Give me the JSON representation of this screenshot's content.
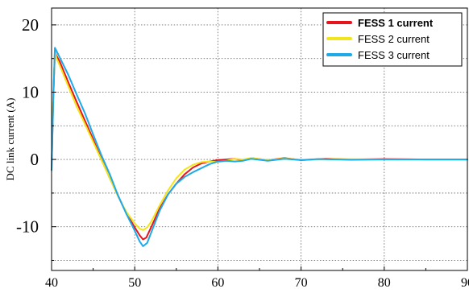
{
  "chart_data": {
    "type": "line",
    "title": "",
    "xlabel": "",
    "ylabel": "DC link current (A)",
    "xlim": [
      40,
      90
    ],
    "ylim": [
      -16.5,
      22.5
    ],
    "x_ticks": [
      40,
      50,
      60,
      70,
      80,
      90
    ],
    "x_tick_labels": [
      "40",
      "50",
      "60",
      "70",
      "80",
      "90"
    ],
    "y_ticks": [
      20,
      10,
      0,
      -10
    ],
    "y_tick_labels": [
      "20",
      "10",
      "0",
      "-10"
    ],
    "y_minor_ticks": [
      15,
      5,
      -5,
      -15
    ],
    "grid": true,
    "legend_position": "top-right",
    "series": [
      {
        "name": "FESS 1 current",
        "color": "#e8141b",
        "points": [
          [
            40.0,
            -1.5
          ],
          [
            40.2,
            9.0
          ],
          [
            40.4,
            16.0
          ],
          [
            40.6,
            15.4
          ],
          [
            41.0,
            14.5
          ],
          [
            42.0,
            11.5
          ],
          [
            43.0,
            8.6
          ],
          [
            44.0,
            5.8
          ],
          [
            45.0,
            3.0
          ],
          [
            46.0,
            0.0
          ],
          [
            47.0,
            -2.8
          ],
          [
            48.0,
            -5.4
          ],
          [
            49.0,
            -8.0
          ],
          [
            50.0,
            -10.1
          ],
          [
            50.6,
            -11.3
          ],
          [
            51.0,
            -11.9
          ],
          [
            51.4,
            -11.6
          ],
          [
            52.0,
            -10.0
          ],
          [
            53.0,
            -7.3
          ],
          [
            54.0,
            -5.2
          ],
          [
            55.0,
            -3.6
          ],
          [
            56.0,
            -2.2
          ],
          [
            57.0,
            -1.2
          ],
          [
            58.0,
            -0.6
          ],
          [
            59.0,
            -0.3
          ],
          [
            60.0,
            -0.1
          ],
          [
            61.0,
            0.0
          ],
          [
            62.0,
            0.1
          ],
          [
            63.0,
            -0.1
          ],
          [
            64.0,
            0.2
          ],
          [
            66.0,
            -0.1
          ],
          [
            68.0,
            0.2
          ],
          [
            70.0,
            -0.1
          ],
          [
            73.0,
            0.1
          ],
          [
            76.0,
            0.0
          ],
          [
            80.0,
            0.05
          ],
          [
            85.0,
            0.0
          ],
          [
            90.0,
            0.0
          ]
        ]
      },
      {
        "name": "FESS 2 current",
        "color": "#f3e51c",
        "points": [
          [
            40.0,
            -1.2
          ],
          [
            40.2,
            9.5
          ],
          [
            40.4,
            16.1
          ],
          [
            40.6,
            15.0
          ],
          [
            41.0,
            13.9
          ],
          [
            42.0,
            10.9
          ],
          [
            43.0,
            7.9
          ],
          [
            44.0,
            5.3
          ],
          [
            45.0,
            2.6
          ],
          [
            46.0,
            -0.1
          ],
          [
            47.0,
            -2.8
          ],
          [
            48.0,
            -5.5
          ],
          [
            49.0,
            -7.8
          ],
          [
            50.0,
            -9.5
          ],
          [
            50.6,
            -10.3
          ],
          [
            51.0,
            -10.5
          ],
          [
            51.5,
            -10.1
          ],
          [
            52.0,
            -9.2
          ],
          [
            53.0,
            -6.8
          ],
          [
            54.0,
            -4.6
          ],
          [
            55.0,
            -2.8
          ],
          [
            56.0,
            -1.5
          ],
          [
            57.0,
            -0.8
          ],
          [
            58.0,
            -0.4
          ],
          [
            59.0,
            -0.3
          ],
          [
            60.0,
            -0.4
          ],
          [
            61.0,
            -0.2
          ],
          [
            62.0,
            0.1
          ],
          [
            63.0,
            0.0
          ],
          [
            64.0,
            0.2
          ],
          [
            66.0,
            -0.1
          ],
          [
            68.0,
            0.15
          ],
          [
            70.0,
            -0.05
          ],
          [
            74.0,
            0.05
          ],
          [
            80.0,
            0.0
          ],
          [
            90.0,
            0.0
          ]
        ]
      },
      {
        "name": "FESS 3 current",
        "color": "#1ea9e8",
        "points": [
          [
            40.0,
            -1.6
          ],
          [
            40.2,
            8.5
          ],
          [
            40.4,
            16.6
          ],
          [
            40.6,
            16.1
          ],
          [
            41.0,
            15.1
          ],
          [
            42.0,
            12.6
          ],
          [
            43.0,
            9.7
          ],
          [
            44.0,
            6.9
          ],
          [
            45.0,
            3.7
          ],
          [
            46.0,
            0.6
          ],
          [
            47.0,
            -2.2
          ],
          [
            48.0,
            -5.4
          ],
          [
            49.0,
            -8.1
          ],
          [
            50.0,
            -10.6
          ],
          [
            50.6,
            -12.2
          ],
          [
            51.0,
            -12.9
          ],
          [
            51.5,
            -12.4
          ],
          [
            52.0,
            -10.8
          ],
          [
            53.0,
            -7.6
          ],
          [
            54.0,
            -5.2
          ],
          [
            55.0,
            -3.6
          ],
          [
            56.0,
            -2.6
          ],
          [
            57.0,
            -1.9
          ],
          [
            58.0,
            -1.3
          ],
          [
            59.0,
            -0.7
          ],
          [
            60.0,
            -0.3
          ],
          [
            61.0,
            -0.2
          ],
          [
            62.0,
            -0.3
          ],
          [
            63.0,
            -0.2
          ],
          [
            64.0,
            0.1
          ],
          [
            66.0,
            -0.2
          ],
          [
            68.0,
            0.1
          ],
          [
            70.0,
            -0.1
          ],
          [
            72.0,
            0.05
          ],
          [
            76.0,
            -0.05
          ],
          [
            80.0,
            0.0
          ],
          [
            90.0,
            0.0
          ]
        ]
      }
    ]
  }
}
